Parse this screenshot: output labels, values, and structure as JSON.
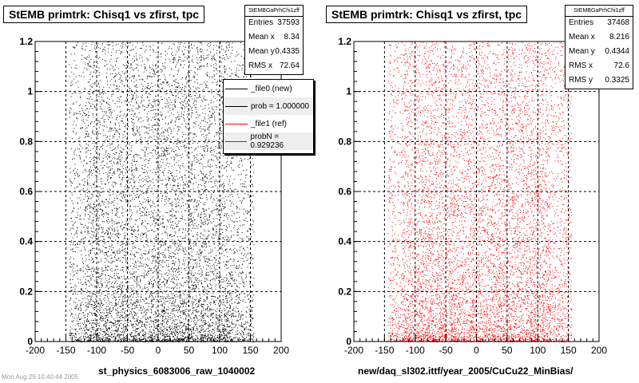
{
  "chart_data": [
    {
      "type": "scatter",
      "title": "StEMB primtrk: Chisq1  vs zfirst, tpc",
      "xlabel": "st_physics_6083006_raw_1040002",
      "xlim": [
        -200,
        200
      ],
      "ylim": [
        0,
        1.2
      ],
      "x_ticks": [
        "-200",
        "-150",
        "-100",
        "-50",
        "0",
        "50",
        "100",
        "150",
        "200"
      ],
      "y_ticks": [
        "0",
        "0.2",
        "0.4",
        "0.6",
        "0.8",
        "1",
        "1.2"
      ],
      "grid": true,
      "marker_color": "#000000",
      "stats": {
        "header": "StEMBGaPrhChi1zff",
        "rows": [
          {
            "label": "Entries",
            "value": "37593"
          },
          {
            "label": "Mean x",
            "value": "8.34"
          },
          {
            "label": "Mean y",
            "value": "0.4335"
          },
          {
            "label": "RMS x",
            "value": "72.64"
          }
        ]
      },
      "legend": {
        "placement": "top-right",
        "entries": [
          {
            "label": "_file0 (new)",
            "color": "#000000"
          },
          {
            "label": "prob = 1.000000",
            "color": "#000000"
          },
          {
            "label": "_file1 (ref)",
            "color": "#ff0000"
          },
          {
            "label": "probN = 0.929236",
            "color": "#ff0000"
          }
        ]
      }
    },
    {
      "type": "scatter",
      "title": "StEMB primtrk: Chisq1  vs zfirst, tpc",
      "xlabel": "new/daq_sl302.ittf/year_2005/CuCu22_MinBias/",
      "xlim": [
        -200,
        200
      ],
      "ylim": [
        0,
        1.2
      ],
      "x_ticks": [
        "-200",
        "-150",
        "-100",
        "-50",
        "0",
        "50",
        "100",
        "150",
        "200"
      ],
      "y_ticks": [
        "0",
        "0.2",
        "0.4",
        "0.6",
        "0.8",
        "1",
        "1.2"
      ],
      "grid": true,
      "marker_color": "#ff0000",
      "stats": {
        "header": "StEMBGaPrhChi1zff",
        "rows": [
          {
            "label": "Entries",
            "value": "37468"
          },
          {
            "label": "Mean x",
            "value": "8.216"
          },
          {
            "label": "Mean y",
            "value": "0.4344"
          },
          {
            "label": "RMS x",
            "value": "72.6"
          },
          {
            "label": "RMS y",
            "value": "0.3325"
          }
        ]
      }
    }
  ],
  "footer_text": "Mon Aug 29 10:40:44 2005"
}
